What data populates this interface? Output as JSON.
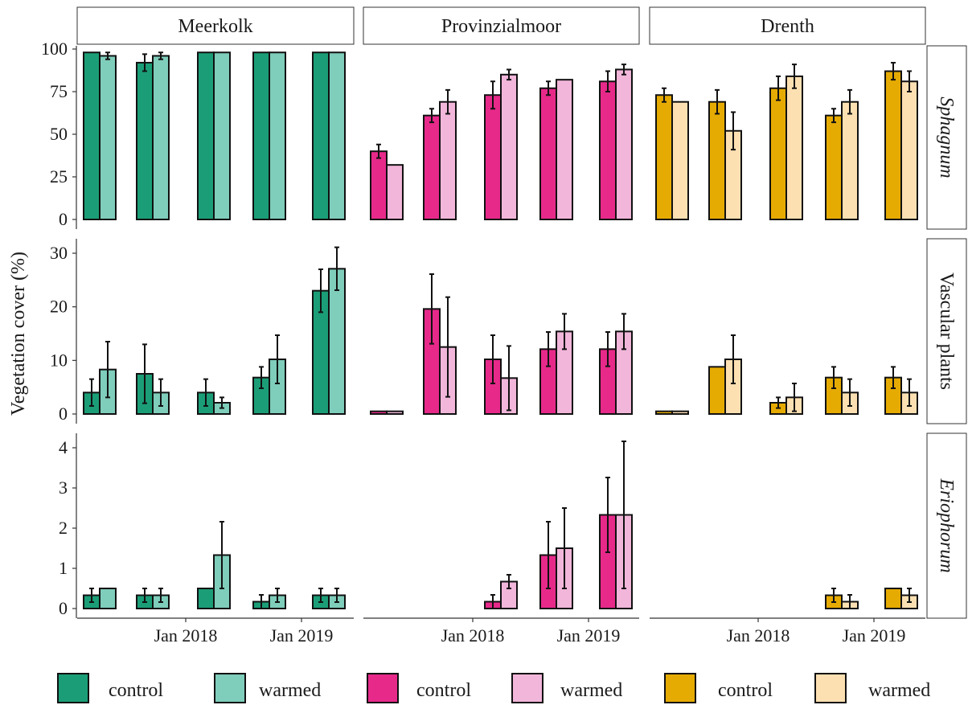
{
  "chart_data": {
    "type": "bar",
    "ylabel": "Vegetation cover (%)",
    "xlabel": "",
    "grid": false,
    "legend_position": "bottom",
    "sites": [
      "Meerkolk",
      "Provinzialmoor",
      "Drenth"
    ],
    "variables": [
      "Sphagnum",
      "Vascular plants",
      "Eriophorum"
    ],
    "x_tick_labels": [
      "Jan 2018",
      "Jan 2019"
    ],
    "colors": {
      "Meerkolk": {
        "control": "#1b9e77",
        "warmed": "#7fcdbb"
      },
      "Provinzialmoor": {
        "control": "#e7298a",
        "warmed": "#f1b6da"
      },
      "Drenth": {
        "control": "#e6ab02",
        "warmed": "#fde0b2"
      }
    },
    "legend": [
      {
        "site": "Meerkolk",
        "treatment": "control",
        "label": "control"
      },
      {
        "site": "Meerkolk",
        "treatment": "warmed",
        "label": "warmed"
      },
      {
        "site": "Provinzialmoor",
        "treatment": "control",
        "label": "control"
      },
      {
        "site": "Provinzialmoor",
        "treatment": "warmed",
        "label": "warmed"
      },
      {
        "site": "Drenth",
        "treatment": "control",
        "label": "control"
      },
      {
        "site": "Drenth",
        "treatment": "warmed",
        "label": "warmed"
      }
    ],
    "panels": {
      "Sphagnum": {
        "ylim": [
          0,
          100
        ],
        "yticks": [
          0,
          25,
          50,
          75,
          100
        ],
        "italic": true,
        "series": {
          "Meerkolk": {
            "control": [
              [
                98,
                0
              ],
              [
                92,
                5
              ],
              [
                98,
                0
              ],
              [
                98,
                0
              ],
              [
                98,
                0
              ]
            ],
            "warmed": [
              [
                96,
                2
              ],
              [
                96,
                2
              ],
              [
                98,
                0
              ],
              [
                98,
                0
              ],
              [
                98,
                0
              ]
            ]
          },
          "Provinzialmoor": {
            "control": [
              [
                40,
                4
              ],
              [
                61,
                4
              ],
              [
                73,
                8
              ],
              [
                77,
                4
              ],
              [
                81,
                6
              ]
            ],
            "warmed": [
              [
                32,
                0
              ],
              [
                69,
                7
              ],
              [
                85,
                3
              ],
              [
                82,
                0
              ],
              [
                88,
                3
              ]
            ]
          },
          "Drenth": {
            "control": [
              [
                73,
                4
              ],
              [
                69,
                7
              ],
              [
                77,
                7
              ],
              [
                61,
                4
              ],
              [
                87,
                5
              ]
            ],
            "warmed": [
              [
                69,
                0
              ],
              [
                52,
                11
              ],
              [
                84,
                7
              ],
              [
                69,
                7
              ],
              [
                81,
                6
              ]
            ]
          }
        }
      },
      "Vascular plants": {
        "ylim": [
          0,
          32
        ],
        "yticks": [
          0,
          10,
          20,
          30
        ],
        "italic": false,
        "series": {
          "Meerkolk": {
            "control": [
              [
                4,
                2.5
              ],
              [
                7.5,
                5.5
              ],
              [
                4,
                2.5
              ],
              [
                6.8,
                2
              ],
              [
                23,
                4
              ]
            ],
            "warmed": [
              [
                8.3,
                5.2
              ],
              [
                4,
                2.5
              ],
              [
                2.1,
                1
              ],
              [
                10.2,
                4.5
              ],
              [
                27.1,
                4
              ]
            ]
          },
          "Provinzialmoor": {
            "control": [
              [
                0.5,
                0
              ],
              [
                19.6,
                6.5
              ],
              [
                10.2,
                4.5
              ],
              [
                12.1,
                3.2
              ],
              [
                12.1,
                3.2
              ]
            ],
            "warmed": [
              [
                0.5,
                0
              ],
              [
                12.5,
                9.3
              ],
              [
                6.7,
                6
              ],
              [
                15.4,
                3.3
              ],
              [
                15.4,
                3.3
              ]
            ]
          },
          "Drenth": {
            "control": [
              [
                0.5,
                0
              ],
              [
                8.8,
                0
              ],
              [
                2.1,
                1
              ],
              [
                6.8,
                2
              ],
              [
                6.8,
                2
              ]
            ],
            "warmed": [
              [
                0.5,
                0
              ],
              [
                10.2,
                4.5
              ],
              [
                3.1,
                2.6
              ],
              [
                4,
                2.5
              ],
              [
                4,
                2.5
              ]
            ]
          }
        }
      },
      "Eriophorum": {
        "ylim": [
          0,
          4.35
        ],
        "yticks": [
          0,
          1,
          2,
          3,
          4
        ],
        "italic": true,
        "series": {
          "Meerkolk": {
            "control": [
              [
                0.33,
                0.17
              ],
              [
                0.33,
                0.17
              ],
              [
                0.5,
                0
              ],
              [
                0.17,
                0.17
              ],
              [
                0.33,
                0.17
              ]
            ],
            "warmed": [
              [
                0.5,
                0
              ],
              [
                0.33,
                0.17
              ],
              [
                1.33,
                0.83
              ],
              [
                0.33,
                0.17
              ],
              [
                0.33,
                0.17
              ]
            ]
          },
          "Provinzialmoor": {
            "control": [
              null,
              null,
              [
                0.17,
                0.17
              ],
              [
                1.33,
                0.83
              ],
              [
                2.33,
                0.93
              ]
            ],
            "warmed": [
              null,
              null,
              [
                0.67,
                0.17
              ],
              [
                1.5,
                1.0
              ],
              [
                2.33,
                1.83
              ]
            ]
          },
          "Drenth": {
            "control": [
              null,
              null,
              null,
              [
                0.33,
                0.17
              ],
              [
                0.5,
                0
              ]
            ],
            "warmed": [
              null,
              null,
              null,
              [
                0.17,
                0.17
              ],
              [
                0.33,
                0.17
              ]
            ]
          }
        }
      }
    }
  }
}
